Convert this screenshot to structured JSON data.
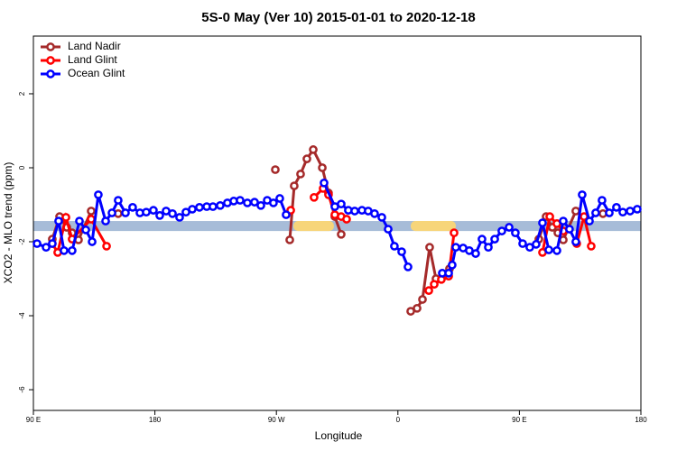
{
  "chart_data": {
    "type": "line",
    "title": "5S-0 May (Ver 10)   2015-01-01 to 2020-12-18",
    "xlabel": "Longitude",
    "ylabel": "XCO2 - MLO trend (ppm)",
    "xlim": [
      90,
      540
    ],
    "ylim": [
      -6.56,
      3.56
    ],
    "xticks": [
      {
        "value": 90,
        "label": "90 E"
      },
      {
        "value": 180,
        "label": "180"
      },
      {
        "value": 270,
        "label": "90 W"
      },
      {
        "value": 360,
        "label": "0"
      },
      {
        "value": 450,
        "label": "90 E"
      },
      {
        "value": 540,
        "label": "180"
      }
    ],
    "yticks": [
      -6,
      -4,
      -2,
      0,
      2
    ],
    "legend": "top-left",
    "band": {
      "color": "#a7bcd8",
      "ylim": [
        -1.71,
        -1.44
      ]
    },
    "highlight": {
      "color": "#f7d57a",
      "ranges": [
        [
          282.6,
          312.6
        ],
        [
          369.5,
          402.9
        ]
      ]
    },
    "series": [
      {
        "name": "Land Nadir",
        "color": "#a52a2a",
        "x": [
          104,
          109.4,
          114.7,
          118.7,
          123.4,
          132.8,
          null,
          152.8,
          null,
          269.2,
          null,
          279.9,
          283.2,
          287.9,
          292.6,
          297.3,
          304,
          308.6,
          313.3,
          318,
          null,
          369.5,
          374.2,
          378.2,
          383.5,
          388.2,
          393.5,
          398.2,
          null,
          464.4,
          469.8,
          474.4,
          478.5,
          482.5,
          491.8,
          null,
          511.9
        ],
        "values": [
          -1.93,
          -1.32,
          -1.61,
          -1.76,
          -1.95,
          -1.17,
          null,
          -1.24,
          null,
          -0.05,
          null,
          -1.95,
          -0.49,
          -0.17,
          0.24,
          0.49,
          0,
          -0.68,
          -1.32,
          -1.8,
          null,
          -3.88,
          -3.8,
          -3.56,
          -2.15,
          -3.0,
          -2.93,
          -2.73,
          null,
          -1.93,
          -1.32,
          -1.61,
          -1.76,
          -1.95,
          -1.17,
          null,
          -1.24
        ]
      },
      {
        "name": "Land Glint",
        "color": "#ff0000",
        "x": [
          104,
          108,
          114.1,
          118.7,
          132.8,
          144.2,
          null,
          280.6,
          null,
          297.9,
          304.6,
          308.6,
          313.3,
          318,
          322,
          null,
          382.9,
          386.9,
          392.2,
          397.6,
          401.6,
          null,
          467.1,
          472.5,
          477.8,
          482.5,
          null,
          492.5,
          497.9,
          503.2
        ],
        "values": [
          -2.05,
          -2.29,
          -1.34,
          -1.93,
          -1.39,
          -2.12,
          null,
          -1.15,
          null,
          -0.8,
          -0.56,
          -0.73,
          -1.27,
          -1.32,
          -1.39,
          null,
          -3.32,
          -3.15,
          -3.02,
          -2.93,
          -1.76,
          null,
          -2.29,
          -1.32,
          -1.51,
          -1.71,
          null,
          -2.05,
          -1.32,
          -2.12
        ]
      },
      {
        "name": "Ocean Glint",
        "color": "#0000ff",
        "x": [
          92.7,
          99.4,
          104,
          108.7,
          112.7,
          118.7,
          124.1,
          128.8,
          133.5,
          138.1,
          143.5,
          148.2,
          152.8,
          158.2,
          163.5,
          168.9,
          173.6,
          178.9,
          183.6,
          188.3,
          193,
          198.3,
          203,
          207.7,
          213,
          218.4,
          223,
          228.4,
          233.7,
          238.4,
          243.1,
          248.5,
          253.8,
          258.5,
          263.2,
          267.8,
          272.5,
          277.2,
          null,
          305.3,
          313.3,
          318,
          323.3,
          328,
          333.4,
          338,
          342.7,
          348.1,
          352.8,
          357.4,
          362.8,
          367.5,
          null,
          392.9,
          397.6,
          400.2,
          402.9,
          408.3,
          412.9,
          417.6,
          422.3,
          427,
          431.7,
          437,
          442.4,
          447,
          452.4,
          457.7,
          462.4,
          467.1,
          471.8,
          477.8,
          482.5,
          487.1,
          491.8,
          496.5,
          501.9,
          506.5,
          511.2,
          516.6,
          521.9,
          526.6,
          532,
          537.3
        ],
        "values": [
          -2.05,
          -2.15,
          -2.05,
          -1.44,
          -2.24,
          -2.24,
          -1.44,
          -1.68,
          -2.0,
          -0.73,
          -1.44,
          -1.22,
          -0.88,
          -1.22,
          -1.07,
          -1.22,
          -1.2,
          -1.15,
          -1.29,
          -1.17,
          -1.24,
          -1.34,
          -1.2,
          -1.12,
          -1.07,
          -1.05,
          -1.05,
          -1.02,
          -0.95,
          -0.9,
          -0.88,
          -0.95,
          -0.93,
          -1.02,
          -0.88,
          -0.95,
          -0.83,
          -1.27,
          null,
          -0.41,
          -1.05,
          -0.98,
          -1.15,
          -1.17,
          -1.15,
          -1.17,
          -1.24,
          -1.34,
          -1.66,
          -2.12,
          -2.27,
          -2.68,
          null,
          -2.85,
          -2.85,
          -2.63,
          -2.15,
          -2.17,
          -2.24,
          -2.32,
          -1.93,
          -2.15,
          -1.93,
          -1.71,
          -1.61,
          -1.76,
          -2.05,
          -2.15,
          -2.07,
          -1.49,
          -2.22,
          -2.24,
          -1.44,
          -1.66,
          -2.0,
          -0.73,
          -1.44,
          -1.22,
          -0.88,
          -1.22,
          -1.07,
          -1.2,
          -1.17,
          -1.12
        ]
      }
    ]
  }
}
